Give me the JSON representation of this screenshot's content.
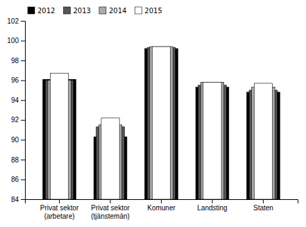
{
  "chart_data": {
    "type": "bar",
    "categories": [
      "Privat sektor\n(arbetare)",
      "Privat sektor\n(tjänstemän)",
      "Komuner",
      "Landsting",
      "Staten"
    ],
    "series": [
      {
        "name": "2012",
        "color": "#000000",
        "values": [
          96.1,
          90.3,
          99.2,
          95.3,
          94.8
        ]
      },
      {
        "name": "2013",
        "color": "#555555",
        "values": [
          96.0,
          91.3,
          99.3,
          95.5,
          95.0
        ]
      },
      {
        "name": "2014",
        "color": "#aaaaaa",
        "values": [
          96.0,
          91.5,
          99.4,
          95.8,
          95.3
        ]
      },
      {
        "name": "2015",
        "color": "#ffffff",
        "values": [
          96.7,
          92.2,
          99.4,
          95.8,
          95.7
        ]
      }
    ],
    "ylim": [
      84,
      102
    ],
    "yticks": [
      84,
      86,
      88,
      90,
      92,
      94,
      96,
      98,
      100,
      102
    ],
    "legend": "upper left"
  }
}
